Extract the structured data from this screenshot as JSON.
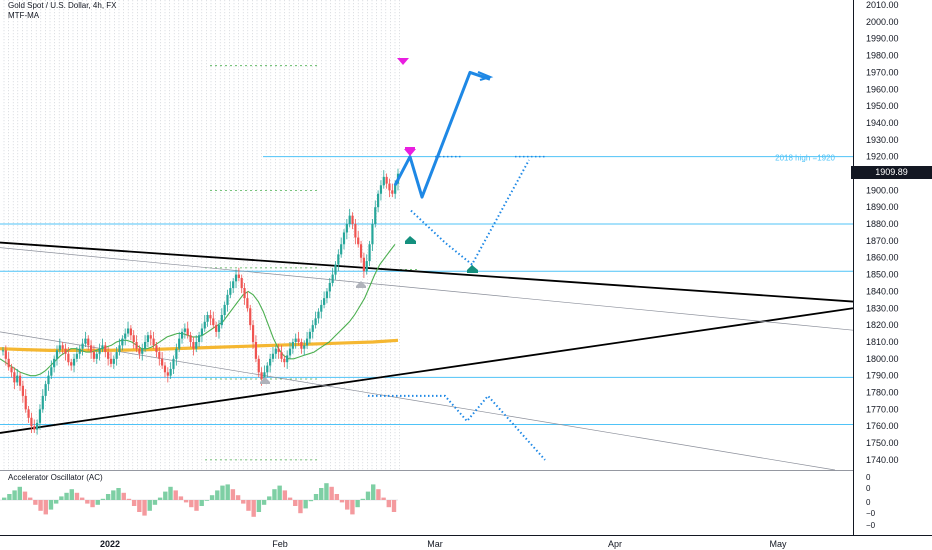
{
  "header": {
    "symbol_title": "Gold Spot / U.S. Dollar, 4h, FX",
    "indicator_label": "MTF-MA"
  },
  "oscillator": {
    "title": "Accelerator Oscillator (AC)",
    "axis_labels": [
      "0",
      "0",
      "0",
      "−0",
      "−0"
    ]
  },
  "price_axis": {
    "labels": [
      "2010.00",
      "2000.00",
      "1990.00",
      "1980.00",
      "1970.00",
      "1960.00",
      "1950.00",
      "1940.00",
      "1930.00",
      "1920.00",
      "1900.00",
      "1890.00",
      "1880.00",
      "1870.00",
      "1860.00",
      "1850.00",
      "1840.00",
      "1830.00",
      "1820.00",
      "1810.00",
      "1800.00",
      "1790.00",
      "1780.00",
      "1770.00",
      "1760.00",
      "1750.00",
      "1740.00"
    ],
    "current_price": "1909.89"
  },
  "time_axis": {
    "labels": [
      "2022",
      "Feb",
      "Mar",
      "Apr",
      "May"
    ]
  },
  "annotations": {
    "high_2018": "2018 high  =1920"
  },
  "colors": {
    "candle_up": "#26a69a",
    "candle_down": "#ef5350",
    "ma_green": "#4caf50",
    "ma_orange": "#f5b731",
    "projection_blue": "#1e88e5",
    "level_cyan": "#4fc3f7",
    "arrow_magenta": "#e91ee0",
    "marker_teal": "#14907e"
  },
  "chart_data": {
    "type": "line",
    "y_range": [
      1734,
      2013
    ],
    "series": [
      {
        "values": [
          1805,
          1800,
          1795,
          1792,
          1786,
          1790,
          1784,
          1778,
          1770,
          1765,
          1760,
          1758,
          1762,
          1770,
          1778,
          1785,
          1790,
          1795,
          1800,
          1805,
          1808,
          1806,
          1803,
          1798,
          1796,
          1800,
          1803,
          1806,
          1809,
          1812,
          1808,
          1804,
          1800,
          1803,
          1806,
          1808,
          1804,
          1800,
          1797,
          1800,
          1804,
          1808,
          1812,
          1815,
          1818,
          1814,
          1810,
          1806,
          1803,
          1806,
          1810,
          1814,
          1812,
          1808,
          1804,
          1800,
          1796,
          1792,
          1790,
          1794,
          1800,
          1806,
          1812,
          1816,
          1818,
          1814,
          1810,
          1806,
          1810,
          1814,
          1818,
          1822,
          1826,
          1824,
          1820,
          1816,
          1820,
          1826,
          1832,
          1838,
          1842,
          1846,
          1850,
          1848,
          1842,
          1836,
          1830,
          1820,
          1810,
          1800,
          1792,
          1788,
          1792,
          1796,
          1800,
          1803,
          1806,
          1804,
          1800,
          1798,
          1802,
          1806,
          1810,
          1812,
          1810,
          1806,
          1808,
          1812,
          1816,
          1820,
          1824,
          1828,
          1832,
          1836,
          1840,
          1845,
          1850,
          1856,
          1862,
          1868,
          1875,
          1880,
          1885,
          1880,
          1872,
          1868,
          1860,
          1852,
          1858,
          1868,
          1880,
          1890,
          1898,
          1903,
          1908,
          1904,
          1900,
          1898,
          1904,
          1909.89
        ]
      }
    ],
    "ma_fast": [
      1800,
      1798,
      1796,
      1794,
      1792,
      1791,
      1790,
      1790,
      1791,
      1793,
      1796,
      1799,
      1802,
      1804,
      1806,
      1806,
      1805,
      1804,
      1804,
      1805,
      1806,
      1807,
      1808,
      1810,
      1811,
      1811,
      1810,
      1808,
      1806,
      1806,
      1807,
      1809,
      1811,
      1813,
      1814,
      1815,
      1815,
      1814,
      1813,
      1813,
      1814,
      1816,
      1818,
      1820,
      1822,
      1826,
      1830,
      1834,
      1838,
      1840,
      1838,
      1834,
      1828,
      1820,
      1812,
      1806,
      1802,
      1800,
      1800,
      1801,
      1802,
      1803,
      1804,
      1806,
      1808,
      1810,
      1813,
      1816,
      1819,
      1822,
      1826,
      1831,
      1836,
      1843,
      1850,
      1856,
      1860,
      1864,
      1868
    ],
    "ma_slow": [
      1806,
      1805.5,
      1805,
      1805,
      1805,
      1805.2,
      1805.5,
      1806,
      1806.5,
      1807,
      1807.5,
      1808,
      1808.5,
      1809,
      1809.5,
      1810,
      1811
    ],
    "levels": [
      1920,
      1880,
      1852,
      1789,
      1761
    ],
    "triangle_lines": [
      {
        "from": [
          0,
          1869
        ],
        "to": [
          1,
          1834
        ]
      },
      {
        "from": [
          0,
          1756
        ],
        "to": [
          1,
          1830
        ]
      }
    ],
    "projections": [
      {
        "style": "solid",
        "points": [
          1903,
          1920,
          1896,
          1970,
          1966
        ]
      },
      {
        "style": "dotted",
        "points": [
          1888,
          1869,
          1856,
          1918
        ]
      },
      {
        "style": "dotted",
        "points": [
          1778,
          1778,
          1763,
          1778,
          1740
        ]
      }
    ],
    "oscillator_values": [
      0.2,
      0.5,
      0.8,
      1.1,
      0.7,
      0.2,
      -0.4,
      -0.9,
      -1.2,
      -0.8,
      -0.3,
      0.3,
      0.6,
      0.9,
      0.6,
      0.2,
      -0.3,
      -0.6,
      -0.4,
      0.1,
      0.5,
      0.8,
      1.0,
      0.6,
      0.1,
      -0.5,
      -1.0,
      -1.3,
      -0.9,
      -0.4,
      0.2,
      0.7,
      1.1,
      0.8,
      0.3,
      -0.2,
      -0.6,
      -0.9,
      -0.5,
      0.0,
      0.4,
      0.8,
      1.2,
      1.3,
      0.9,
      0.4,
      -0.3,
      -0.9,
      -1.4,
      -1.0,
      -0.4,
      0.3,
      0.9,
      1.2,
      0.8,
      0.2,
      -0.5,
      -1.1,
      -0.7,
      -0.1,
      0.5,
      1.0,
      1.4,
      1.1,
      0.5,
      -0.2,
      -0.8,
      -1.2,
      -0.6,
      0.1,
      0.7,
      1.3,
      0.9,
      0.2,
      -0.6,
      -1.0
    ]
  }
}
